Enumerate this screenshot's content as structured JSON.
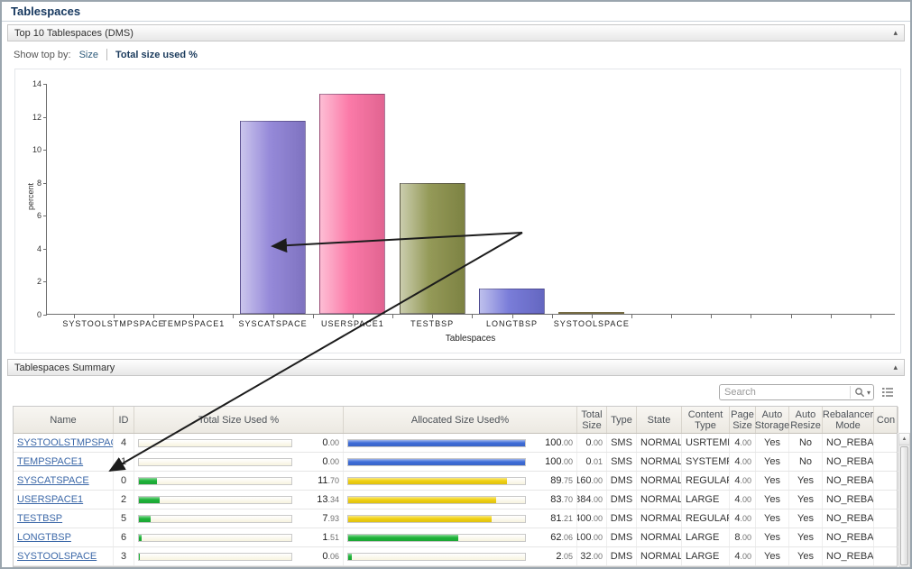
{
  "page": {
    "title": "Tablespaces"
  },
  "chart_panel": {
    "title": "Top 10 Tablespaces (DMS)",
    "collapse_icon": "▴",
    "show_top_by_label": "Show top by:",
    "option_size": "Size",
    "option_total": "Total size used %"
  },
  "chart_data": {
    "type": "bar",
    "categories": [
      "SYSTOOLSTMPSPACE",
      "TEMPSPACE1",
      "SYSCATSPACE",
      "USERSPACE1",
      "TESTBSP",
      "LONGTBSP",
      "SYSTOOLSPACE"
    ],
    "values": [
      0,
      0,
      11.7,
      13.34,
      7.93,
      1.51,
      0.06
    ],
    "bar_colors": [
      "#8d80d6",
      "#8d80d6",
      "#8d80d6",
      "#fb6fa1",
      "#8b914a",
      "#6f72d6",
      "#a89f42"
    ],
    "xlabel": "Tablespaces",
    "ylabel": "percent",
    "ylim": [
      0,
      14
    ],
    "yticks": [
      0,
      2,
      4,
      6,
      8,
      10,
      12,
      14
    ],
    "grid": false,
    "legend": false
  },
  "summary_panel": {
    "title": "Tablespaces Summary",
    "collapse_icon": "▴",
    "search_placeholder": "Search"
  },
  "table": {
    "columns": [
      "Name",
      "ID",
      "Total Size Used %",
      "Allocated Size Used%",
      "Total Size",
      "Type",
      "State",
      "Content Type",
      "Page Size",
      "Auto Storage",
      "Auto Resize",
      "Rebalancer Mode",
      "Con"
    ],
    "bar_palette": {
      "green": "#1eb339",
      "yellow": "#f1d112",
      "blue": "#3e6cd8"
    },
    "rows": [
      {
        "name": "SYSTOOLSTMPSPACE",
        "id": "4",
        "total_used": {
          "value": 0,
          "label": "0.00",
          "color": "green"
        },
        "allocated": {
          "value": 100,
          "label": "100.00",
          "color": "blue"
        },
        "total_size": "0.00",
        "type": "SMS",
        "state": "NORMAL",
        "content_type": "USRTEMP",
        "page_size": "4.00",
        "auto_storage": "Yes",
        "auto_resize": "No",
        "rebalancer": "NO_REBAL",
        "con": ""
      },
      {
        "name": "TEMPSPACE1",
        "id": "1",
        "total_used": {
          "value": 0,
          "label": "0.00",
          "color": "green"
        },
        "allocated": {
          "value": 100,
          "label": "100.00",
          "color": "blue"
        },
        "total_size": "0.01",
        "type": "SMS",
        "state": "NORMAL",
        "content_type": "SYSTEMP",
        "page_size": "4.00",
        "auto_storage": "Yes",
        "auto_resize": "No",
        "rebalancer": "NO_REBAL",
        "con": ""
      },
      {
        "name": "SYSCATSPACE",
        "id": "0",
        "total_used": {
          "value": 11.7,
          "label": "11.70",
          "color": "green"
        },
        "allocated": {
          "value": 89.75,
          "label": "89.75",
          "color": "yellow"
        },
        "total_size": "160.00",
        "type": "DMS",
        "state": "NORMAL",
        "content_type": "REGULAR",
        "page_size": "4.00",
        "auto_storage": "Yes",
        "auto_resize": "Yes",
        "rebalancer": "NO_REBAL",
        "con": ""
      },
      {
        "name": "USERSPACE1",
        "id": "2",
        "total_used": {
          "value": 13.34,
          "label": "13.34",
          "color": "green"
        },
        "allocated": {
          "value": 83.7,
          "label": "83.70",
          "color": "yellow"
        },
        "total_size": "384.00",
        "type": "DMS",
        "state": "NORMAL",
        "content_type": "LARGE",
        "page_size": "4.00",
        "auto_storage": "Yes",
        "auto_resize": "Yes",
        "rebalancer": "NO_REBAL",
        "con": ""
      },
      {
        "name": "TESTBSP",
        "id": "5",
        "total_used": {
          "value": 7.93,
          "label": "7.93",
          "color": "green"
        },
        "allocated": {
          "value": 81.21,
          "label": "81.21",
          "color": "yellow"
        },
        "total_size": "400.00",
        "type": "DMS",
        "state": "NORMAL",
        "content_type": "REGULAR",
        "page_size": "4.00",
        "auto_storage": "Yes",
        "auto_resize": "Yes",
        "rebalancer": "NO_REBAL",
        "con": ""
      },
      {
        "name": "LONGTBSP",
        "id": "6",
        "total_used": {
          "value": 1.51,
          "label": "1.51",
          "color": "green"
        },
        "allocated": {
          "value": 62.06,
          "label": "62.06",
          "color": "green"
        },
        "total_size": "100.00",
        "type": "DMS",
        "state": "NORMAL",
        "content_type": "LARGE",
        "page_size": "8.00",
        "auto_storage": "Yes",
        "auto_resize": "Yes",
        "rebalancer": "NO_REBAL",
        "con": ""
      },
      {
        "name": "SYSTOOLSPACE",
        "id": "3",
        "total_used": {
          "value": 0.06,
          "label": "0.06",
          "color": "green"
        },
        "allocated": {
          "value": 2.05,
          "label": "2.05",
          "color": "green"
        },
        "total_size": "32.00",
        "type": "DMS",
        "state": "NORMAL",
        "content_type": "LARGE",
        "page_size": "4.00",
        "auto_storage": "Yes",
        "auto_resize": "Yes",
        "rebalancer": "NO_REBAL",
        "con": ""
      }
    ]
  }
}
